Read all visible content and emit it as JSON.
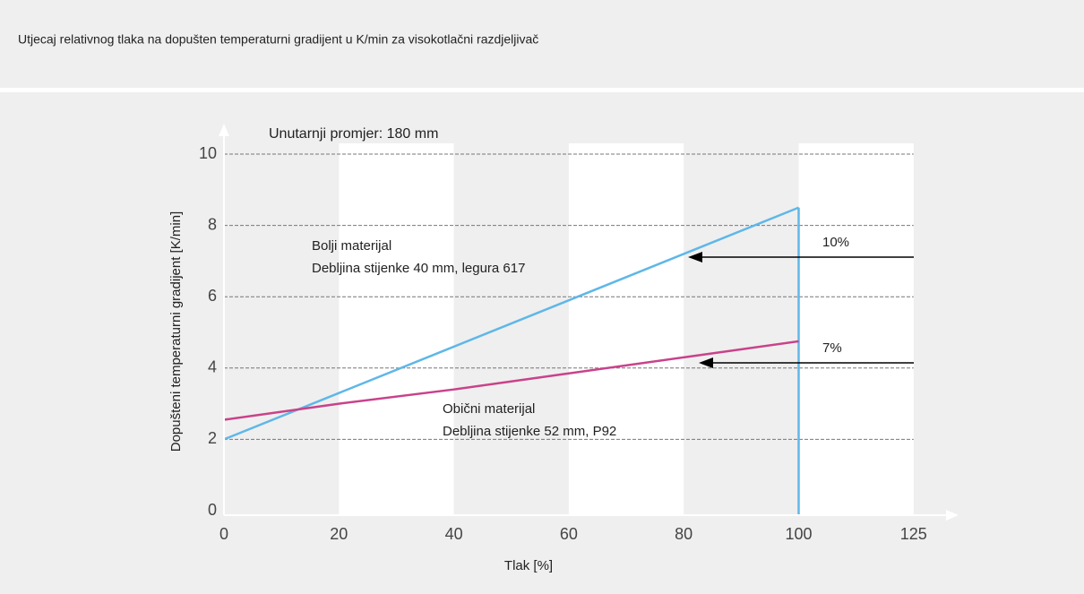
{
  "chart_data": {
    "type": "line",
    "title": "Utjecaj relativnog tlaka na dopušten temperaturni gradijent u K/min za visokotlačni razdjeljivač",
    "subtitle": "Unutarnji promjer: 180 mm",
    "x_label": "Tlak [%]",
    "y_label": "Dopušteni temperaturni gradijent [K/min]",
    "categories": [
      "0",
      "20",
      "40",
      "60",
      "80",
      "100",
      "125"
    ],
    "series": [
      {
        "name": "Bolji materijal",
        "color": "#5fb7e8",
        "values": [
          2,
          3.3,
          4.6,
          5.9,
          7.2,
          8.5,
          null
        ]
      },
      {
        "name": "Obični materijal",
        "color": "#c9428a",
        "values": [
          2.55,
          3.0,
          3.4,
          3.85,
          4.3,
          4.75,
          null
        ]
      }
    ],
    "ylim": [
      0,
      10
    ],
    "yticks": [
      0,
      2,
      4,
      6,
      8,
      10
    ],
    "grid": true,
    "annotations": [
      {
        "text": "Bolji materijal"
      },
      {
        "text": "Debljina stijenke 40 mm, legura 617"
      },
      {
        "text": "Obični materijal"
      },
      {
        "text": "Debljina stijenke 52 mm, P92"
      },
      {
        "text": "10%"
      },
      {
        "text": "7%"
      }
    ]
  }
}
